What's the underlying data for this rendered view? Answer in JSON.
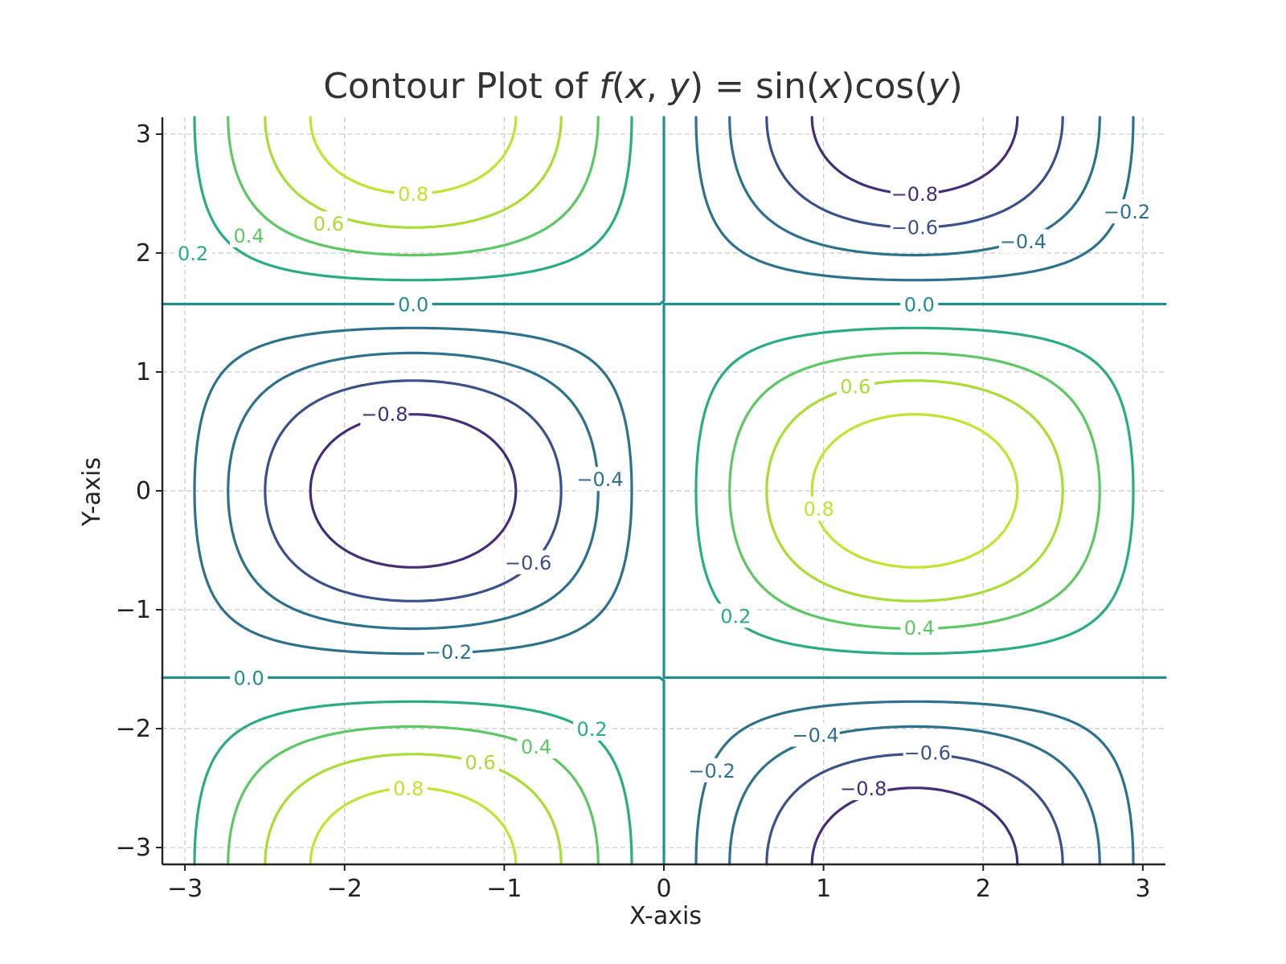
{
  "chart_data": {
    "type": "contour",
    "function": "sin(x)cos(y)",
    "title_parts": [
      "Contour Plot of ",
      "f",
      "(",
      "x",
      ", ",
      "y",
      ") = sin(",
      "x",
      ")cos(",
      "y",
      ")"
    ],
    "xlabel": "X-axis",
    "ylabel": "Y-axis",
    "xlim": [
      -3.14159,
      3.14159
    ],
    "ylim": [
      -3.14159,
      3.14159
    ],
    "xticks": [
      -3,
      -2,
      -1,
      0,
      1,
      2,
      3
    ],
    "yticks": [
      -3,
      -2,
      -1,
      0,
      1,
      2,
      3
    ],
    "xtick_labels": [
      "−3",
      "−2",
      "−1",
      "0",
      "1",
      "2",
      "3"
    ],
    "ytick_labels": [
      "−3",
      "−2",
      "−1",
      "0",
      "1",
      "2",
      "3"
    ],
    "grid": true,
    "colormap": "viridis",
    "levels": [
      -0.8,
      -0.6,
      -0.4,
      -0.2,
      0.0,
      0.2,
      0.4,
      0.6,
      0.8
    ],
    "level_labels": [
      "−0.8",
      "−0.6",
      "−0.4",
      "−0.2",
      "0.0",
      "0.2",
      "0.4",
      "0.6",
      "0.8"
    ],
    "level_colors": [
      "#472c7a",
      "#3b518b",
      "#2c718e",
      "#21908d",
      "#27ad81",
      "#5cc863",
      "#aadc32",
      "#d9e33a",
      "#2a788e"
    ],
    "inline_labels": [
      {
        "level": 0.8,
        "x": -1.57,
        "y": 2.5
      },
      {
        "level": 0.6,
        "x": -2.1,
        "y": 2.25
      },
      {
        "level": 0.4,
        "x": -2.6,
        "y": 2.15
      },
      {
        "level": 0.2,
        "x": -2.95,
        "y": 2.0
      },
      {
        "level": 0.0,
        "x": -1.57,
        "y": 1.5708
      },
      {
        "level": 0.0,
        "x": 1.6,
        "y": 1.5708
      },
      {
        "level": -0.8,
        "x": 1.57,
        "y": 2.5
      },
      {
        "level": -0.6,
        "x": 1.57,
        "y": 2.22
      },
      {
        "level": -0.4,
        "x": 2.25,
        "y": 2.1
      },
      {
        "level": -0.2,
        "x": 2.9,
        "y": 2.35
      },
      {
        "level": -0.8,
        "x": -1.75,
        "y": 0.65
      },
      {
        "level": -0.6,
        "x": -0.85,
        "y": -0.6
      },
      {
        "level": -0.4,
        "x": -0.4,
        "y": 0.1
      },
      {
        "level": -0.2,
        "x": -1.35,
        "y": -1.35
      },
      {
        "level": 0.0,
        "x": -2.6,
        "y": -1.5708
      },
      {
        "level": 0.8,
        "x": 0.97,
        "y": -0.15
      },
      {
        "level": 0.6,
        "x": 1.2,
        "y": 0.88
      },
      {
        "level": 0.4,
        "x": 1.6,
        "y": -1.15
      },
      {
        "level": 0.2,
        "x": 0.45,
        "y": -1.05
      },
      {
        "level": 0.8,
        "x": -1.6,
        "y": -2.5
      },
      {
        "level": 0.6,
        "x": -1.15,
        "y": -2.28
      },
      {
        "level": 0.4,
        "x": -0.8,
        "y": -2.15
      },
      {
        "level": 0.2,
        "x": -0.45,
        "y": -2.0
      },
      {
        "level": -0.8,
        "x": 1.25,
        "y": -2.5
      },
      {
        "level": -0.6,
        "x": 1.65,
        "y": -2.2
      },
      {
        "level": -0.4,
        "x": 0.95,
        "y": -2.05
      },
      {
        "level": -0.2,
        "x": 0.3,
        "y": -2.35
      }
    ]
  }
}
